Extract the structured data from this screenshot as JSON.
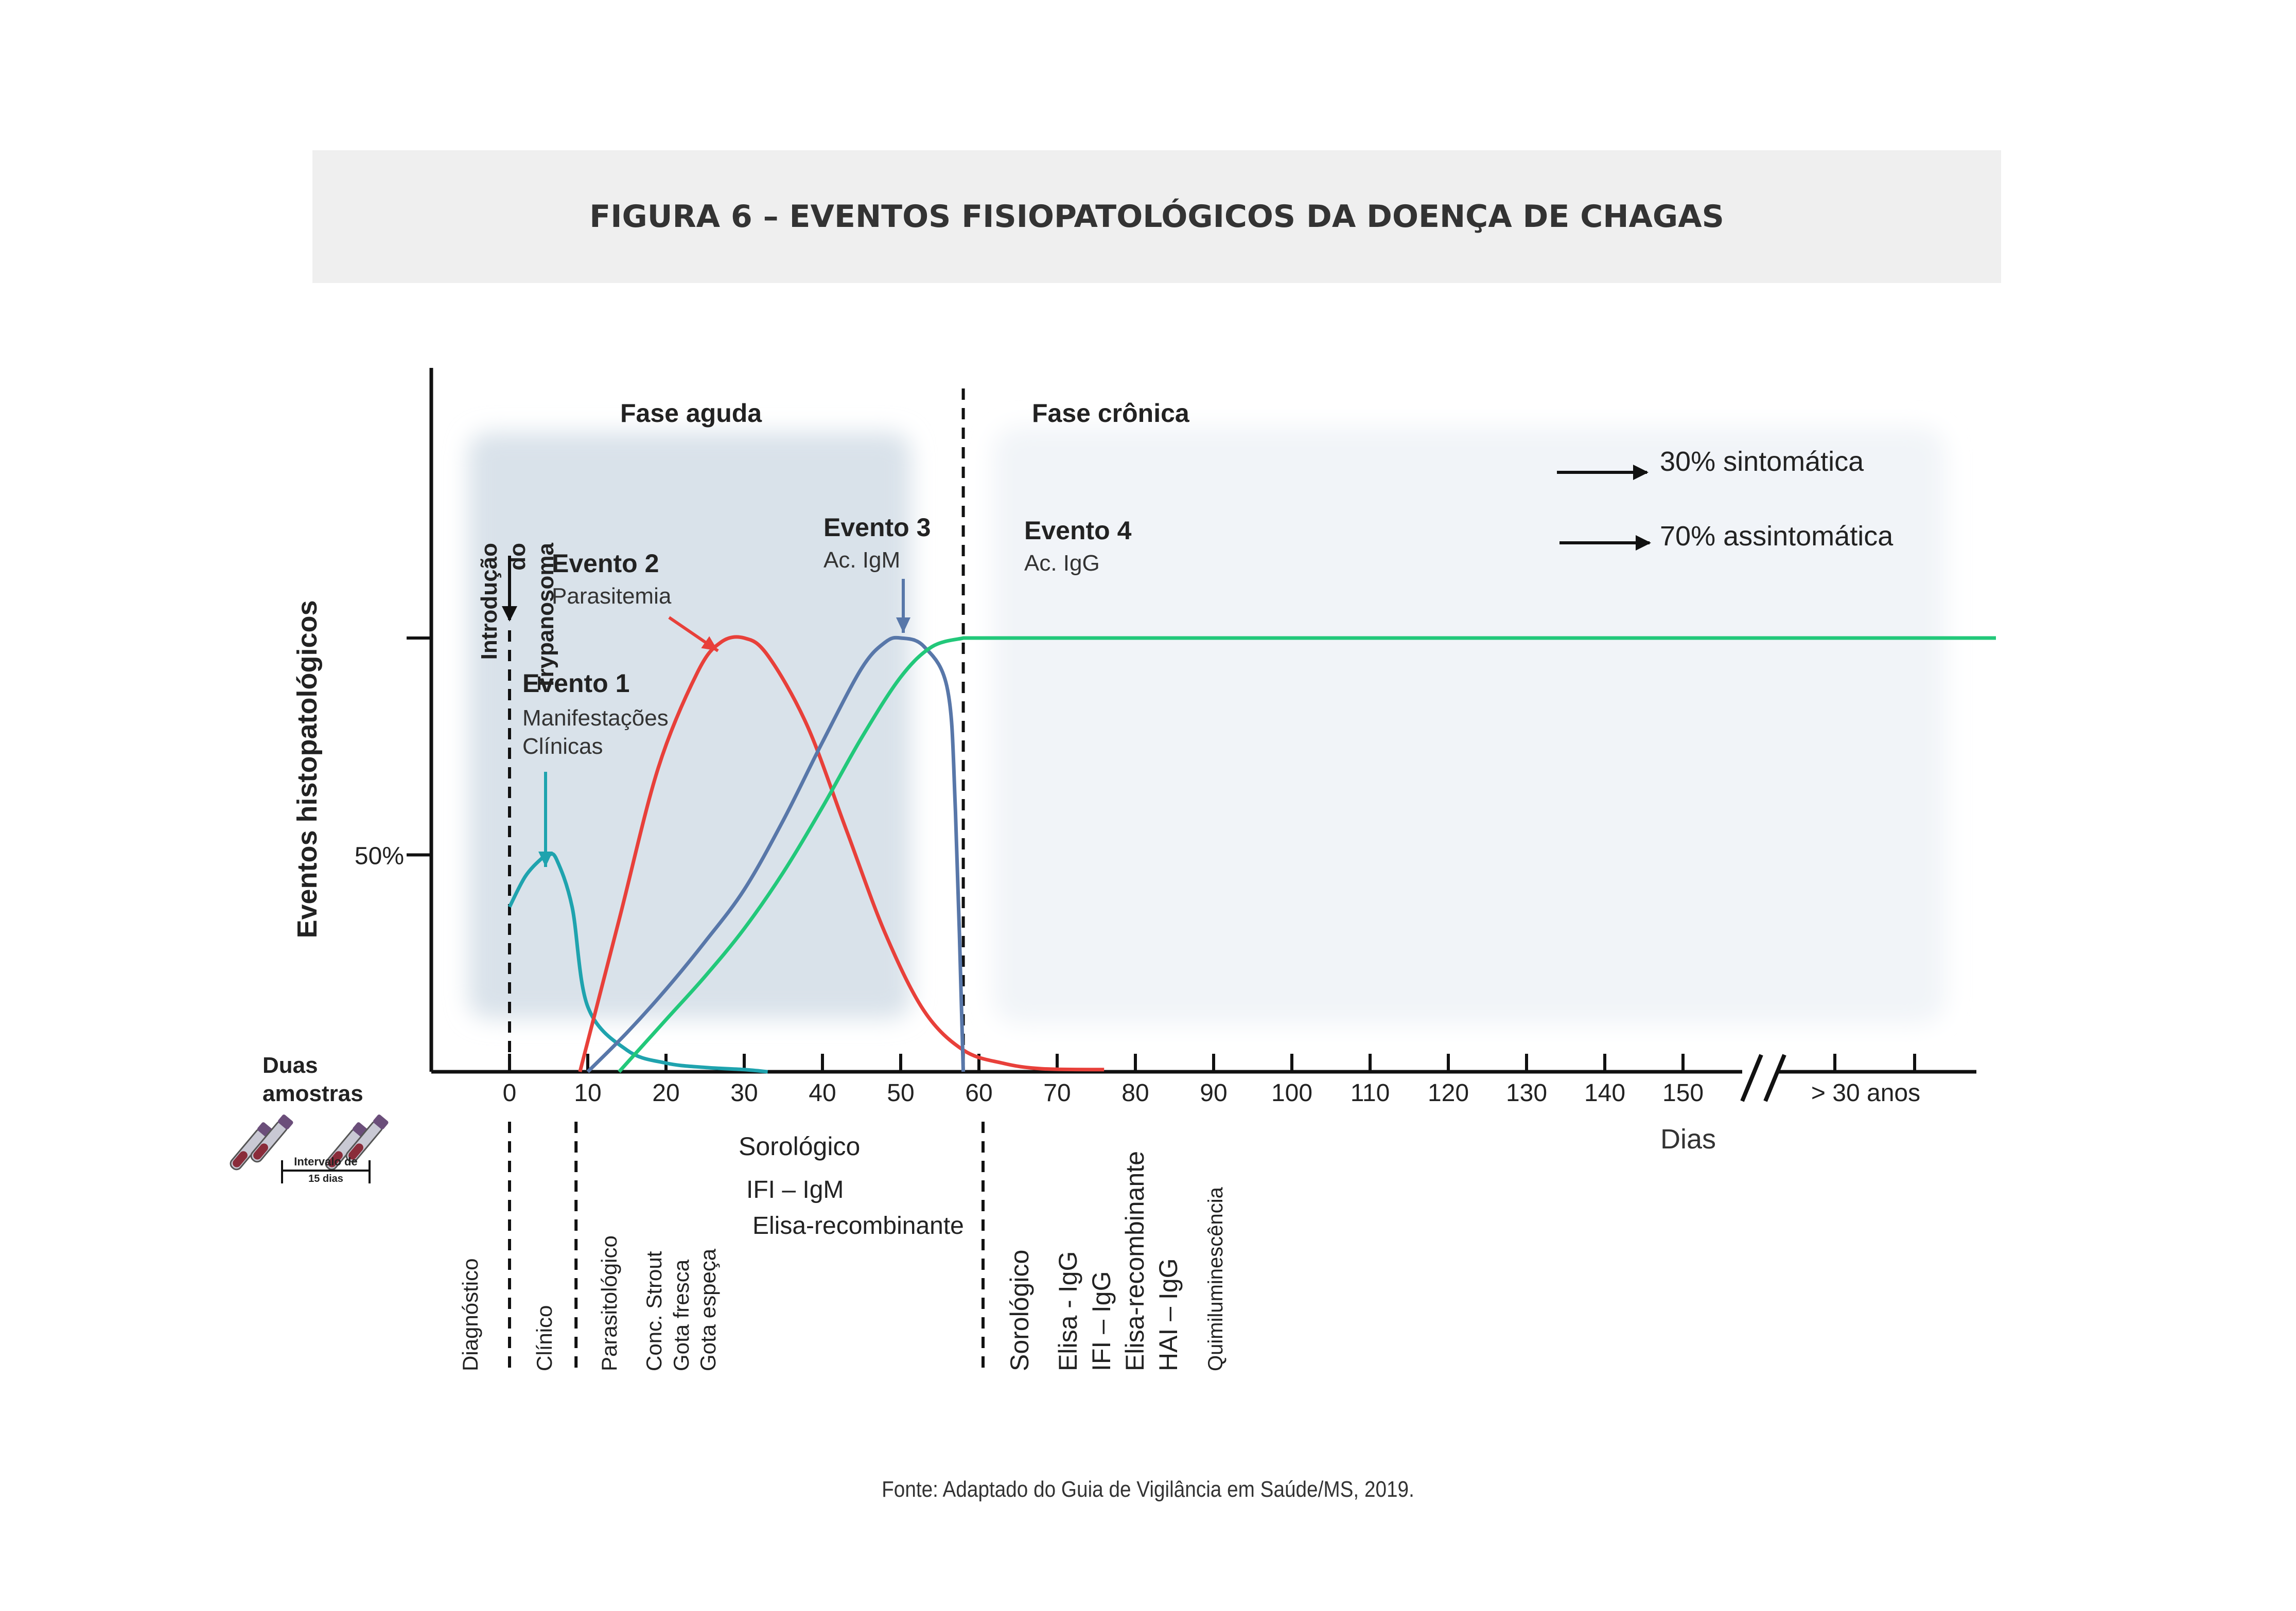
{
  "figure_title": "FIGURA 6 – EVENTOS FISIOPATOLÓGICOS DA DOENÇA DE CHAGAS",
  "source": "Fonte: Adaptado do Guia de Vigilância em Saúde/MS, 2019.",
  "colors": {
    "evento1": "#1fa3ae",
    "evento2": "#e8403a",
    "evento3": "#5877a9",
    "evento4": "#22c87a",
    "acute_bg": "#d9e2ea",
    "chronic_bg": "#f1f4f8",
    "axis": "#111111"
  },
  "chart_data": {
    "type": "line",
    "ylabel": "Eventos histopatológicos",
    "y_ticks": [
      {
        "value": 50,
        "label": "50%"
      },
      {
        "value": 100,
        "label": ""
      }
    ],
    "xlabel": "Dias",
    "x_ticks": [
      {
        "value": 0,
        "label": "0"
      },
      {
        "value": 10,
        "label": "10"
      },
      {
        "value": 20,
        "label": "20"
      },
      {
        "value": 30,
        "label": "30"
      },
      {
        "value": 40,
        "label": "40"
      },
      {
        "value": 50,
        "label": "50"
      },
      {
        "value": 60,
        "label": "60"
      },
      {
        "value": 70,
        "label": "70"
      },
      {
        "value": 80,
        "label": "80"
      },
      {
        "value": 90,
        "label": "90"
      },
      {
        "value": 100,
        "label": "100"
      },
      {
        "value": 110,
        "label": "110"
      },
      {
        "value": 120,
        "label": "120"
      },
      {
        "value": 130,
        "label": "130"
      },
      {
        "value": 140,
        "label": "140"
      },
      {
        "value": 150,
        "label": "150"
      },
      {
        "value": 160,
        "label": ""
      },
      {
        "value": 170,
        "label": ""
      }
    ],
    "x_break_label": "> 30 anos",
    "phases": [
      {
        "label": "Fase aguda",
        "from": -5,
        "to": 50
      },
      {
        "label": "Fase crônica",
        "from": 62,
        "to": 190
      }
    ],
    "phase_boundary_day": 58,
    "introduction_label": [
      "Introdução",
      "do",
      "Trypanosoma"
    ],
    "series": [
      {
        "key": "evento1",
        "title": "Evento 1",
        "subtitle": [
          "Manifestações",
          "Clínicas"
        ],
        "x": [
          0,
          2,
          4,
          5,
          6,
          8,
          10,
          15,
          20,
          25,
          30,
          33
        ],
        "y": [
          38,
          45,
          49,
          50,
          49,
          38,
          15,
          5,
          2,
          1,
          0.5,
          0
        ]
      },
      {
        "key": "evento2",
        "title": "Evento 2",
        "subtitle": [
          "Parasitemia"
        ],
        "x": [
          9,
          14,
          19,
          24,
          27,
          30,
          33,
          38,
          43,
          48,
          53,
          58,
          63,
          68,
          76
        ],
        "y": [
          0,
          35,
          70,
          92,
          99,
          100,
          96,
          80,
          56,
          32,
          14,
          5,
          2,
          0.7,
          0.5
        ]
      },
      {
        "key": "evento3",
        "title": "Evento 3",
        "subtitle": [
          "Ac. IgM"
        ],
        "x": [
          10,
          15,
          20,
          25,
          30,
          35,
          40,
          45,
          48,
          50,
          53,
          56,
          57,
          58
        ],
        "y": [
          0,
          9,
          19,
          30,
          42,
          58,
          76,
          93,
          99,
          100,
          98,
          88,
          60,
          0
        ]
      },
      {
        "key": "evento4",
        "title": "Evento 4",
        "subtitle": [
          "Ac. IgG"
        ],
        "x": [
          14,
          20,
          25,
          30,
          35,
          40,
          45,
          50,
          54,
          58,
          190
        ],
        "y": [
          0,
          12,
          22,
          33,
          46,
          61,
          77,
          91,
          98,
          100,
          100
        ]
      }
    ],
    "outcomes": [
      "30% sintomática",
      "70% assintomática"
    ],
    "samples_label": [
      "Duas",
      "amostras"
    ],
    "samples_interval": [
      "Intervalo de",
      "15 dias"
    ],
    "serologic_acute": [
      "Sorológico",
      "IFI – IgM",
      "Elisa-recombinante"
    ],
    "diagnostics": {
      "diagnostico": "Diagnóstico",
      "clinico": "Clínico",
      "parasitologico": "Parasitológico",
      "parasito_methods": [
        "Conc. Strout",
        "Gota fresca",
        "Gota espeça"
      ],
      "sorologico_chronic": "Sorológico",
      "chronic_methods": [
        "Elisa - IgG",
        "IFI – IgG",
        "Elisa-recombinante",
        "HAI – IgG"
      ],
      "quimio": "Quimiluminescência"
    }
  }
}
